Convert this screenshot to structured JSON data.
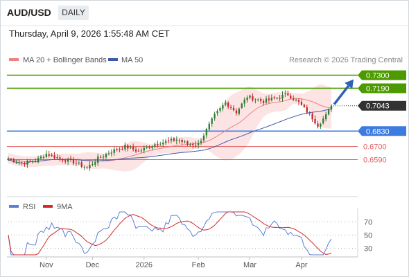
{
  "header": {
    "symbol": "AUD/USD",
    "timeframe": "DAILY",
    "timestamp": "Thursday, April 9, 2026 1:55:48 AM CET"
  },
  "legend": {
    "bollinger": "MA 20 + Bollinger Bands",
    "ma50": "MA 50",
    "rsi": "RSI",
    "rsi_ma": "9MA",
    "copyright": "Research © 2026 Trading Central"
  },
  "colors": {
    "up": "#2e7d32",
    "down": "#c62828",
    "ma20": "#f08080",
    "band_fill": "#fde4e4",
    "ma50": "#3f5aa8",
    "resistance": "#4c9a00",
    "pivot": "#3d7be0",
    "support": "#e06060",
    "price_box": "#333333",
    "arrow": "#2b62b8",
    "rsi": "#5b7fd6",
    "rsi_ma": "#d62828"
  },
  "chart_data": {
    "type": "candlestick",
    "price_axis": {
      "ylim": [
        0.629,
        0.735
      ]
    },
    "current_price": "0.7043",
    "levels": [
      {
        "label": "0.7300",
        "value": 0.73,
        "kind": "resistance"
      },
      {
        "label": "0.7190",
        "value": 0.719,
        "kind": "resistance"
      },
      {
        "label": "0.6830",
        "value": 0.683,
        "kind": "pivot"
      },
      {
        "label": "0.6700",
        "value": 0.67,
        "kind": "support"
      },
      {
        "label": "0.6590",
        "value": 0.659,
        "kind": "support"
      }
    ],
    "x_ticks": [
      "Nov",
      "Dec",
      "2026",
      "Feb",
      "Mar",
      "Apr"
    ],
    "rsi_axis": {
      "ylim": [
        20,
        85
      ],
      "ticks": [
        "70",
        "50",
        "30"
      ]
    },
    "waypoints": [
      [
        0,
        0.66
      ],
      [
        5,
        0.656
      ],
      [
        10,
        0.658
      ],
      [
        14,
        0.664
      ],
      [
        19,
        0.66
      ],
      [
        24,
        0.657
      ],
      [
        29,
        0.652
      ],
      [
        33,
        0.66
      ],
      [
        38,
        0.666
      ],
      [
        43,
        0.67
      ],
      [
        48,
        0.666
      ],
      [
        54,
        0.672
      ],
      [
        58,
        0.674
      ],
      [
        62,
        0.676
      ],
      [
        66,
        0.672
      ],
      [
        70,
        0.672
      ],
      [
        76,
        0.696
      ],
      [
        80,
        0.707
      ],
      [
        84,
        0.699
      ],
      [
        88,
        0.712
      ],
      [
        94,
        0.708
      ],
      [
        99,
        0.711
      ],
      [
        103,
        0.714
      ],
      [
        107,
        0.707
      ],
      [
        111,
        0.697
      ],
      [
        114,
        0.688
      ],
      [
        117,
        0.696
      ],
      [
        119,
        0.7043
      ]
    ]
  }
}
